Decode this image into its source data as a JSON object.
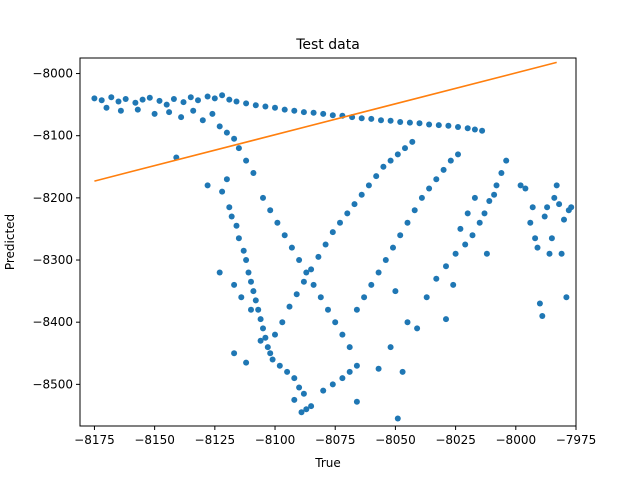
{
  "chart_data": {
    "type": "scatter",
    "title": "Test data",
    "xlabel": "True",
    "ylabel": "Predicted",
    "xlim": [
      -8181,
      -7975
    ],
    "ylim": [
      -8567,
      -7975
    ],
    "xticks": [
      -8175,
      -8150,
      -8125,
      -8100,
      -8075,
      -8050,
      -8025,
      -8000,
      -7975
    ],
    "xtick_labels": [
      "−8175",
      "−8150",
      "−8125",
      "−8100",
      "−8075",
      "−8050",
      "−8025",
      "−8000",
      "−7975"
    ],
    "yticks": [
      -8000,
      -8100,
      -8200,
      -8300,
      -8400,
      -8500
    ],
    "ytick_labels": [
      "−8000",
      "−8100",
      "−8200",
      "−8300",
      "−8400",
      "−8500"
    ],
    "grid": false,
    "series": [
      {
        "kind": "scatter",
        "color": "#1f77b4",
        "points": [
          [
            -8175,
            -8040
          ],
          [
            -8172,
            -8043
          ],
          [
            -8168,
            -8038
          ],
          [
            -8165,
            -8045
          ],
          [
            -8162,
            -8041
          ],
          [
            -8158,
            -8047
          ],
          [
            -8155,
            -8042
          ],
          [
            -8152,
            -8039
          ],
          [
            -8148,
            -8044
          ],
          [
            -8145,
            -8050
          ],
          [
            -8142,
            -8041
          ],
          [
            -8138,
            -8046
          ],
          [
            -8135,
            -8038
          ],
          [
            -8132,
            -8043
          ],
          [
            -8128,
            -8037
          ],
          [
            -8125,
            -8040
          ],
          [
            -8122,
            -8035
          ],
          [
            -8119,
            -8042
          ],
          [
            -8116,
            -8045
          ],
          [
            -8112,
            -8048
          ],
          [
            -8108,
            -8051
          ],
          [
            -8104,
            -8053
          ],
          [
            -8100,
            -8055
          ],
          [
            -8096,
            -8058
          ],
          [
            -8092,
            -8060
          ],
          [
            -8088,
            -8062
          ],
          [
            -8084,
            -8063
          ],
          [
            -8080,
            -8065
          ],
          [
            -8076,
            -8067
          ],
          [
            -8072,
            -8068
          ],
          [
            -8068,
            -8070
          ],
          [
            -8064,
            -8072
          ],
          [
            -8060,
            -8073
          ],
          [
            -8056,
            -8075
          ],
          [
            -8052,
            -8076
          ],
          [
            -8048,
            -8078
          ],
          [
            -8044,
            -8079
          ],
          [
            -8040,
            -8080
          ],
          [
            -8036,
            -8082
          ],
          [
            -8032,
            -8083
          ],
          [
            -8028,
            -8084
          ],
          [
            -8024,
            -8086
          ],
          [
            -8020,
            -8088
          ],
          [
            -8017,
            -8090
          ],
          [
            -8014,
            -8092
          ],
          [
            -8170,
            -8055
          ],
          [
            -8164,
            -8060
          ],
          [
            -8157,
            -8058
          ],
          [
            -8150,
            -8065
          ],
          [
            -8144,
            -8062
          ],
          [
            -8139,
            -8070
          ],
          [
            -8134,
            -8060
          ],
          [
            -8130,
            -8075
          ],
          [
            -8126,
            -8065
          ],
          [
            -8123,
            -8085
          ],
          [
            -8120,
            -8095
          ],
          [
            -8117,
            -8105
          ],
          [
            -8115,
            -8120
          ],
          [
            -8120,
            -8170
          ],
          [
            -8122,
            -8190
          ],
          [
            -8141,
            -8135
          ],
          [
            -8128,
            -8180
          ],
          [
            -8119,
            -8215
          ],
          [
            -8112,
            -8140
          ],
          [
            -8109,
            -8160
          ],
          [
            -8118,
            -8230
          ],
          [
            -8116,
            -8245
          ],
          [
            -8115,
            -8265
          ],
          [
            -8113,
            -8285
          ],
          [
            -8112,
            -8300
          ],
          [
            -8111,
            -8320
          ],
          [
            -8110,
            -8335
          ],
          [
            -8109,
            -8350
          ],
          [
            -8108,
            -8365
          ],
          [
            -8107,
            -8380
          ],
          [
            -8106,
            -8395
          ],
          [
            -8105,
            -8410
          ],
          [
            -8104,
            -8425
          ],
          [
            -8103,
            -8440
          ],
          [
            -8102,
            -8450
          ],
          [
            -8101,
            -8460
          ],
          [
            -8098,
            -8470
          ],
          [
            -8095,
            -8480
          ],
          [
            -8092,
            -8490
          ],
          [
            -8090,
            -8505
          ],
          [
            -8088,
            -8515
          ],
          [
            -8092,
            -8525
          ],
          [
            -8087,
            -8540
          ],
          [
            -8089,
            -8545
          ],
          [
            -8085,
            -8535
          ],
          [
            -8080,
            -8510
          ],
          [
            -8076,
            -8500
          ],
          [
            -8072,
            -8490
          ],
          [
            -8069,
            -8480
          ],
          [
            -8066,
            -8470
          ],
          [
            -8123,
            -8320
          ],
          [
            -8117,
            -8340
          ],
          [
            -8114,
            -8360
          ],
          [
            -8110,
            -8380
          ],
          [
            -8106,
            -8430
          ],
          [
            -8117,
            -8450
          ],
          [
            -8112,
            -8465
          ],
          [
            -8100,
            -8420
          ],
          [
            -8097,
            -8400
          ],
          [
            -8094,
            -8375
          ],
          [
            -8091,
            -8355
          ],
          [
            -8088,
            -8335
          ],
          [
            -8085,
            -8315
          ],
          [
            -8082,
            -8295
          ],
          [
            -8079,
            -8275
          ],
          [
            -8076,
            -8255
          ],
          [
            -8073,
            -8240
          ],
          [
            -8070,
            -8225
          ],
          [
            -8067,
            -8210
          ],
          [
            -8064,
            -8195
          ],
          [
            -8061,
            -8180
          ],
          [
            -8058,
            -8165
          ],
          [
            -8055,
            -8150
          ],
          [
            -8052,
            -8140
          ],
          [
            -8049,
            -8130
          ],
          [
            -8046,
            -8120
          ],
          [
            -8043,
            -8110
          ],
          [
            -8105,
            -8200
          ],
          [
            -8102,
            -8220
          ],
          [
            -8099,
            -8240
          ],
          [
            -8096,
            -8260
          ],
          [
            -8093,
            -8280
          ],
          [
            -8090,
            -8300
          ],
          [
            -8087,
            -8320
          ],
          [
            -8084,
            -8340
          ],
          [
            -8081,
            -8360
          ],
          [
            -8078,
            -8380
          ],
          [
            -8075,
            -8400
          ],
          [
            -8072,
            -8420
          ],
          [
            -8069,
            -8440
          ],
          [
            -8066,
            -8380
          ],
          [
            -8063,
            -8360
          ],
          [
            -8060,
            -8340
          ],
          [
            -8057,
            -8320
          ],
          [
            -8054,
            -8300
          ],
          [
            -8051,
            -8280
          ],
          [
            -8048,
            -8260
          ],
          [
            -8045,
            -8240
          ],
          [
            -8042,
            -8220
          ],
          [
            -8039,
            -8200
          ],
          [
            -8036,
            -8185
          ],
          [
            -8033,
            -8170
          ],
          [
            -8030,
            -8155
          ],
          [
            -8027,
            -8140
          ],
          [
            -8024,
            -8130
          ],
          [
            -8066,
            -8528
          ],
          [
            -8057,
            -8475
          ],
          [
            -8052,
            -8440
          ],
          [
            -8049,
            -8555
          ],
          [
            -8045,
            -8400
          ],
          [
            -8047,
            -8480
          ],
          [
            -8050,
            -8350
          ],
          [
            -8041,
            -8410
          ],
          [
            -8037,
            -8360
          ],
          [
            -8033,
            -8330
          ],
          [
            -8029,
            -8310
          ],
          [
            -8025,
            -8290
          ],
          [
            -8021,
            -8275
          ],
          [
            -8018,
            -8260
          ],
          [
            -8015,
            -8240
          ],
          [
            -8013,
            -8225
          ],
          [
            -8011,
            -8205
          ],
          [
            -8008,
            -8180
          ],
          [
            -8006,
            -8160
          ],
          [
            -8004,
            -8140
          ],
          [
            -8029,
            -8395
          ],
          [
            -8026,
            -8340
          ],
          [
            -8023,
            -8250
          ],
          [
            -8020,
            -8225
          ],
          [
            -8017,
            -8200
          ],
          [
            -8012,
            -8290
          ],
          [
            -8009,
            -8195
          ],
          [
            -7998,
            -8180
          ],
          [
            -7996,
            -8185
          ],
          [
            -7994,
            -8240
          ],
          [
            -7993,
            -8215
          ],
          [
            -7992,
            -8265
          ],
          [
            -7991,
            -8280
          ],
          [
            -7990,
            -8370
          ],
          [
            -7989,
            -8390
          ],
          [
            -7988,
            -8230
          ],
          [
            -7987,
            -8215
          ],
          [
            -7986,
            -8290
          ],
          [
            -7985,
            -8265
          ],
          [
            -7984,
            -8200
          ],
          [
            -7983,
            -8180
          ],
          [
            -7982,
            -8210
          ],
          [
            -7981,
            -8290
          ],
          [
            -7980,
            -8235
          ],
          [
            -7979,
            -8360
          ],
          [
            -7978,
            -8220
          ],
          [
            -7977,
            -8215
          ]
        ]
      },
      {
        "kind": "line",
        "color": "#ff7f0e",
        "points": [
          [
            -8175,
            -8173
          ],
          [
            -7983,
            -7982
          ]
        ]
      }
    ]
  }
}
